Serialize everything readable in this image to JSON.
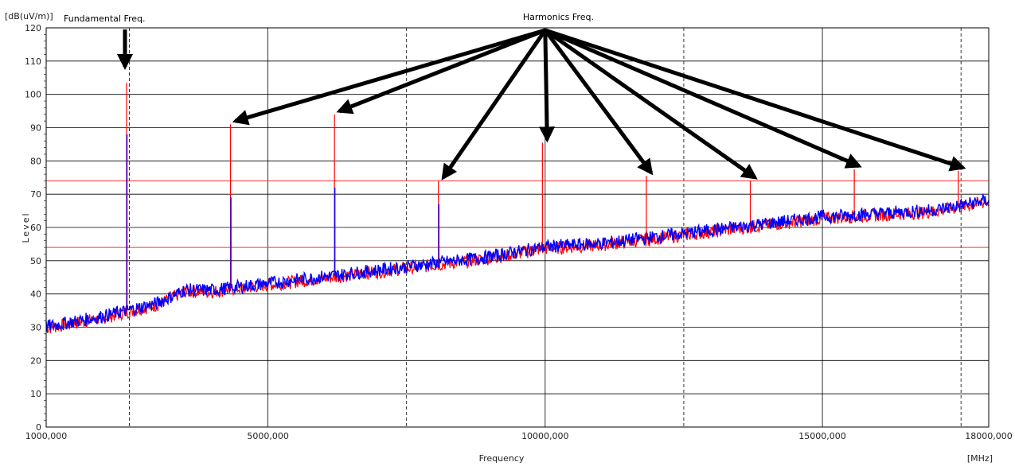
{
  "chart_data": {
    "type": "line",
    "y_unit": "[dB(uV/m)]",
    "x_unit": "[MHz]",
    "xlabel": "Frequency",
    "ylabel": "Level",
    "xlim": [
      1000,
      18000
    ],
    "ylim": [
      0,
      120
    ],
    "y_ticks": [
      0,
      10,
      20,
      30,
      40,
      50,
      60,
      70,
      80,
      90,
      100,
      110,
      120
    ],
    "x_tick_labels": [
      {
        "value": 1000,
        "label": "1000,000"
      },
      {
        "value": 5000,
        "label": "5000,000"
      },
      {
        "value": 10000,
        "label": "10000,000"
      },
      {
        "value": 15000,
        "label": "15000,000"
      },
      {
        "value": 18000,
        "label": "18000,000"
      }
    ],
    "grid": true,
    "major_grid_x": [
      5000,
      10000,
      15000
    ],
    "minor_grid_x": [
      2500,
      7500,
      12500,
      17500
    ],
    "limit_lines": [
      74,
      54
    ],
    "colors": {
      "peak": "#ff0000",
      "avg": "#0000ff",
      "limit": "#ff3030",
      "grid": "#000000"
    },
    "noise_floor": {
      "x": [
        1000,
        2000,
        3000,
        3500,
        4000,
        5000,
        6000,
        7000,
        8000,
        9000,
        10000,
        11000,
        12000,
        13000,
        14000,
        15000,
        16000,
        17000,
        18000
      ],
      "y": [
        30,
        33,
        37,
        41,
        41,
        43,
        45,
        47,
        49,
        51,
        54,
        55,
        57,
        59,
        61,
        63,
        64,
        65,
        68
      ]
    },
    "peaks": [
      {
        "freq": 2450,
        "peak": 103.5,
        "avg": 88
      },
      {
        "freq": 4325,
        "peak": 91,
        "avg": 69
      },
      {
        "freq": 6200,
        "peak": 94,
        "avg": 72
      },
      {
        "freq": 8075,
        "peak": 74,
        "avg": 67
      },
      {
        "freq": 9950,
        "peak": 85.5,
        "avg": 55
      },
      {
        "freq": 11825,
        "peak": 75.5,
        "avg": 57
      },
      {
        "freq": 13700,
        "peak": 74,
        "avg": 62
      },
      {
        "freq": 15575,
        "peak": 77.5,
        "avg": 65
      },
      {
        "freq": 17450,
        "peak": 77,
        "avg": 66
      }
    ],
    "annotations": {
      "fundamental": {
        "text": "Fundamental Freq.",
        "freq": 2450
      },
      "harmonics": {
        "text": "Harmonics Freq.",
        "targets": [
          4325,
          6200,
          8075,
          9950,
          11825,
          13700,
          15575,
          17450
        ]
      }
    }
  }
}
